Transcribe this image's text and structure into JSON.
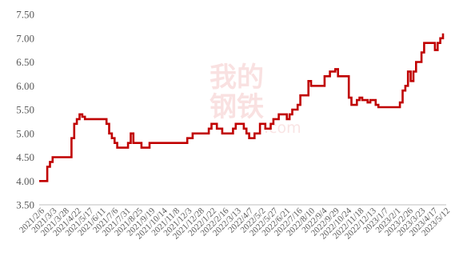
{
  "colors": {
    "series": "#c00000",
    "axis": "#bfbfbf",
    "tick_text": "#595959"
  },
  "watermark": {
    "line1": "我的",
    "line2": "钢铁",
    "line3": ".com"
  },
  "chart_data": {
    "type": "line",
    "title": "",
    "xlabel": "",
    "ylabel": "",
    "ylim": [
      3.5,
      7.5
    ],
    "grid": false,
    "y_ticks": [
      "3.50",
      "4.00",
      "4.50",
      "5.00",
      "5.50",
      "6.00",
      "6.50",
      "7.00",
      "7.50"
    ],
    "x_ticks": [
      "2021/2/6",
      "2021/3/3",
      "2021/3/28",
      "2021/4/22",
      "2021/5/17",
      "2021/6/11",
      "2021/7/6",
      "2021/7/31",
      "2021/8/25",
      "2021/9/19",
      "2021/10/14",
      "2021/11/8",
      "2021/12/3",
      "2021/12/28",
      "2022/1/22",
      "2022/2/16",
      "2022/3/13",
      "2022/4/7",
      "2022/5/2",
      "2022/5/27",
      "2022/6/21",
      "2022/7/16",
      "2022/8/10",
      "2022/9/4",
      "2022/9/29",
      "2022/10/24",
      "2022/11/18",
      "2022/12/13",
      "2023/1/7",
      "2023/2/1",
      "2023/2/26",
      "2023/3/23",
      "2023/4/17",
      "2023/5/12"
    ],
    "series": [
      {
        "values": [
          4.0,
          4.0,
          4.0,
          4.3,
          4.4,
          4.5,
          4.5,
          4.5,
          4.5,
          4.5,
          4.5,
          4.5,
          4.9,
          5.2,
          5.3,
          5.4,
          5.35,
          5.3,
          5.3,
          5.3,
          5.3,
          5.3,
          5.3,
          5.3,
          5.3,
          5.2,
          5.0,
          4.9,
          4.8,
          4.7,
          4.7,
          4.7,
          4.7,
          4.8,
          5.0,
          4.8,
          4.8,
          4.8,
          4.7,
          4.7,
          4.7,
          4.8,
          4.8,
          4.8,
          4.8,
          4.8,
          4.8,
          4.8,
          4.8,
          4.8,
          4.8,
          4.8,
          4.8,
          4.8,
          4.8,
          4.9,
          4.9,
          5.0,
          5.0,
          5.0,
          5.0,
          5.0,
          5.0,
          5.1,
          5.2,
          5.2,
          5.1,
          5.1,
          5.0,
          5.0,
          5.0,
          5.0,
          5.1,
          5.2,
          5.2,
          5.2,
          5.1,
          5.0,
          4.9,
          4.9,
          5.0,
          5.0,
          5.2,
          5.2,
          5.1,
          5.1,
          5.2,
          5.3,
          5.3,
          5.4,
          5.4,
          5.4,
          5.3,
          5.4,
          5.5,
          5.5,
          5.6,
          5.8,
          5.8,
          5.8,
          6.1,
          6.0,
          6.0,
          6.0,
          6.0,
          6.0,
          6.2,
          6.2,
          6.3,
          6.3,
          6.35,
          6.2,
          6.2,
          6.2,
          6.2,
          5.75,
          5.6,
          5.6,
          5.7,
          5.75,
          5.7,
          5.7,
          5.65,
          5.7,
          5.7,
          5.6,
          5.55,
          5.55,
          5.55,
          5.55,
          5.55,
          5.55,
          5.55,
          5.55,
          5.65,
          5.9,
          6.0,
          6.3,
          6.1,
          6.3,
          6.5,
          6.5,
          6.7,
          6.9,
          6.9,
          6.9,
          6.9,
          6.75,
          6.9,
          7.0,
          7.1
        ]
      }
    ]
  }
}
